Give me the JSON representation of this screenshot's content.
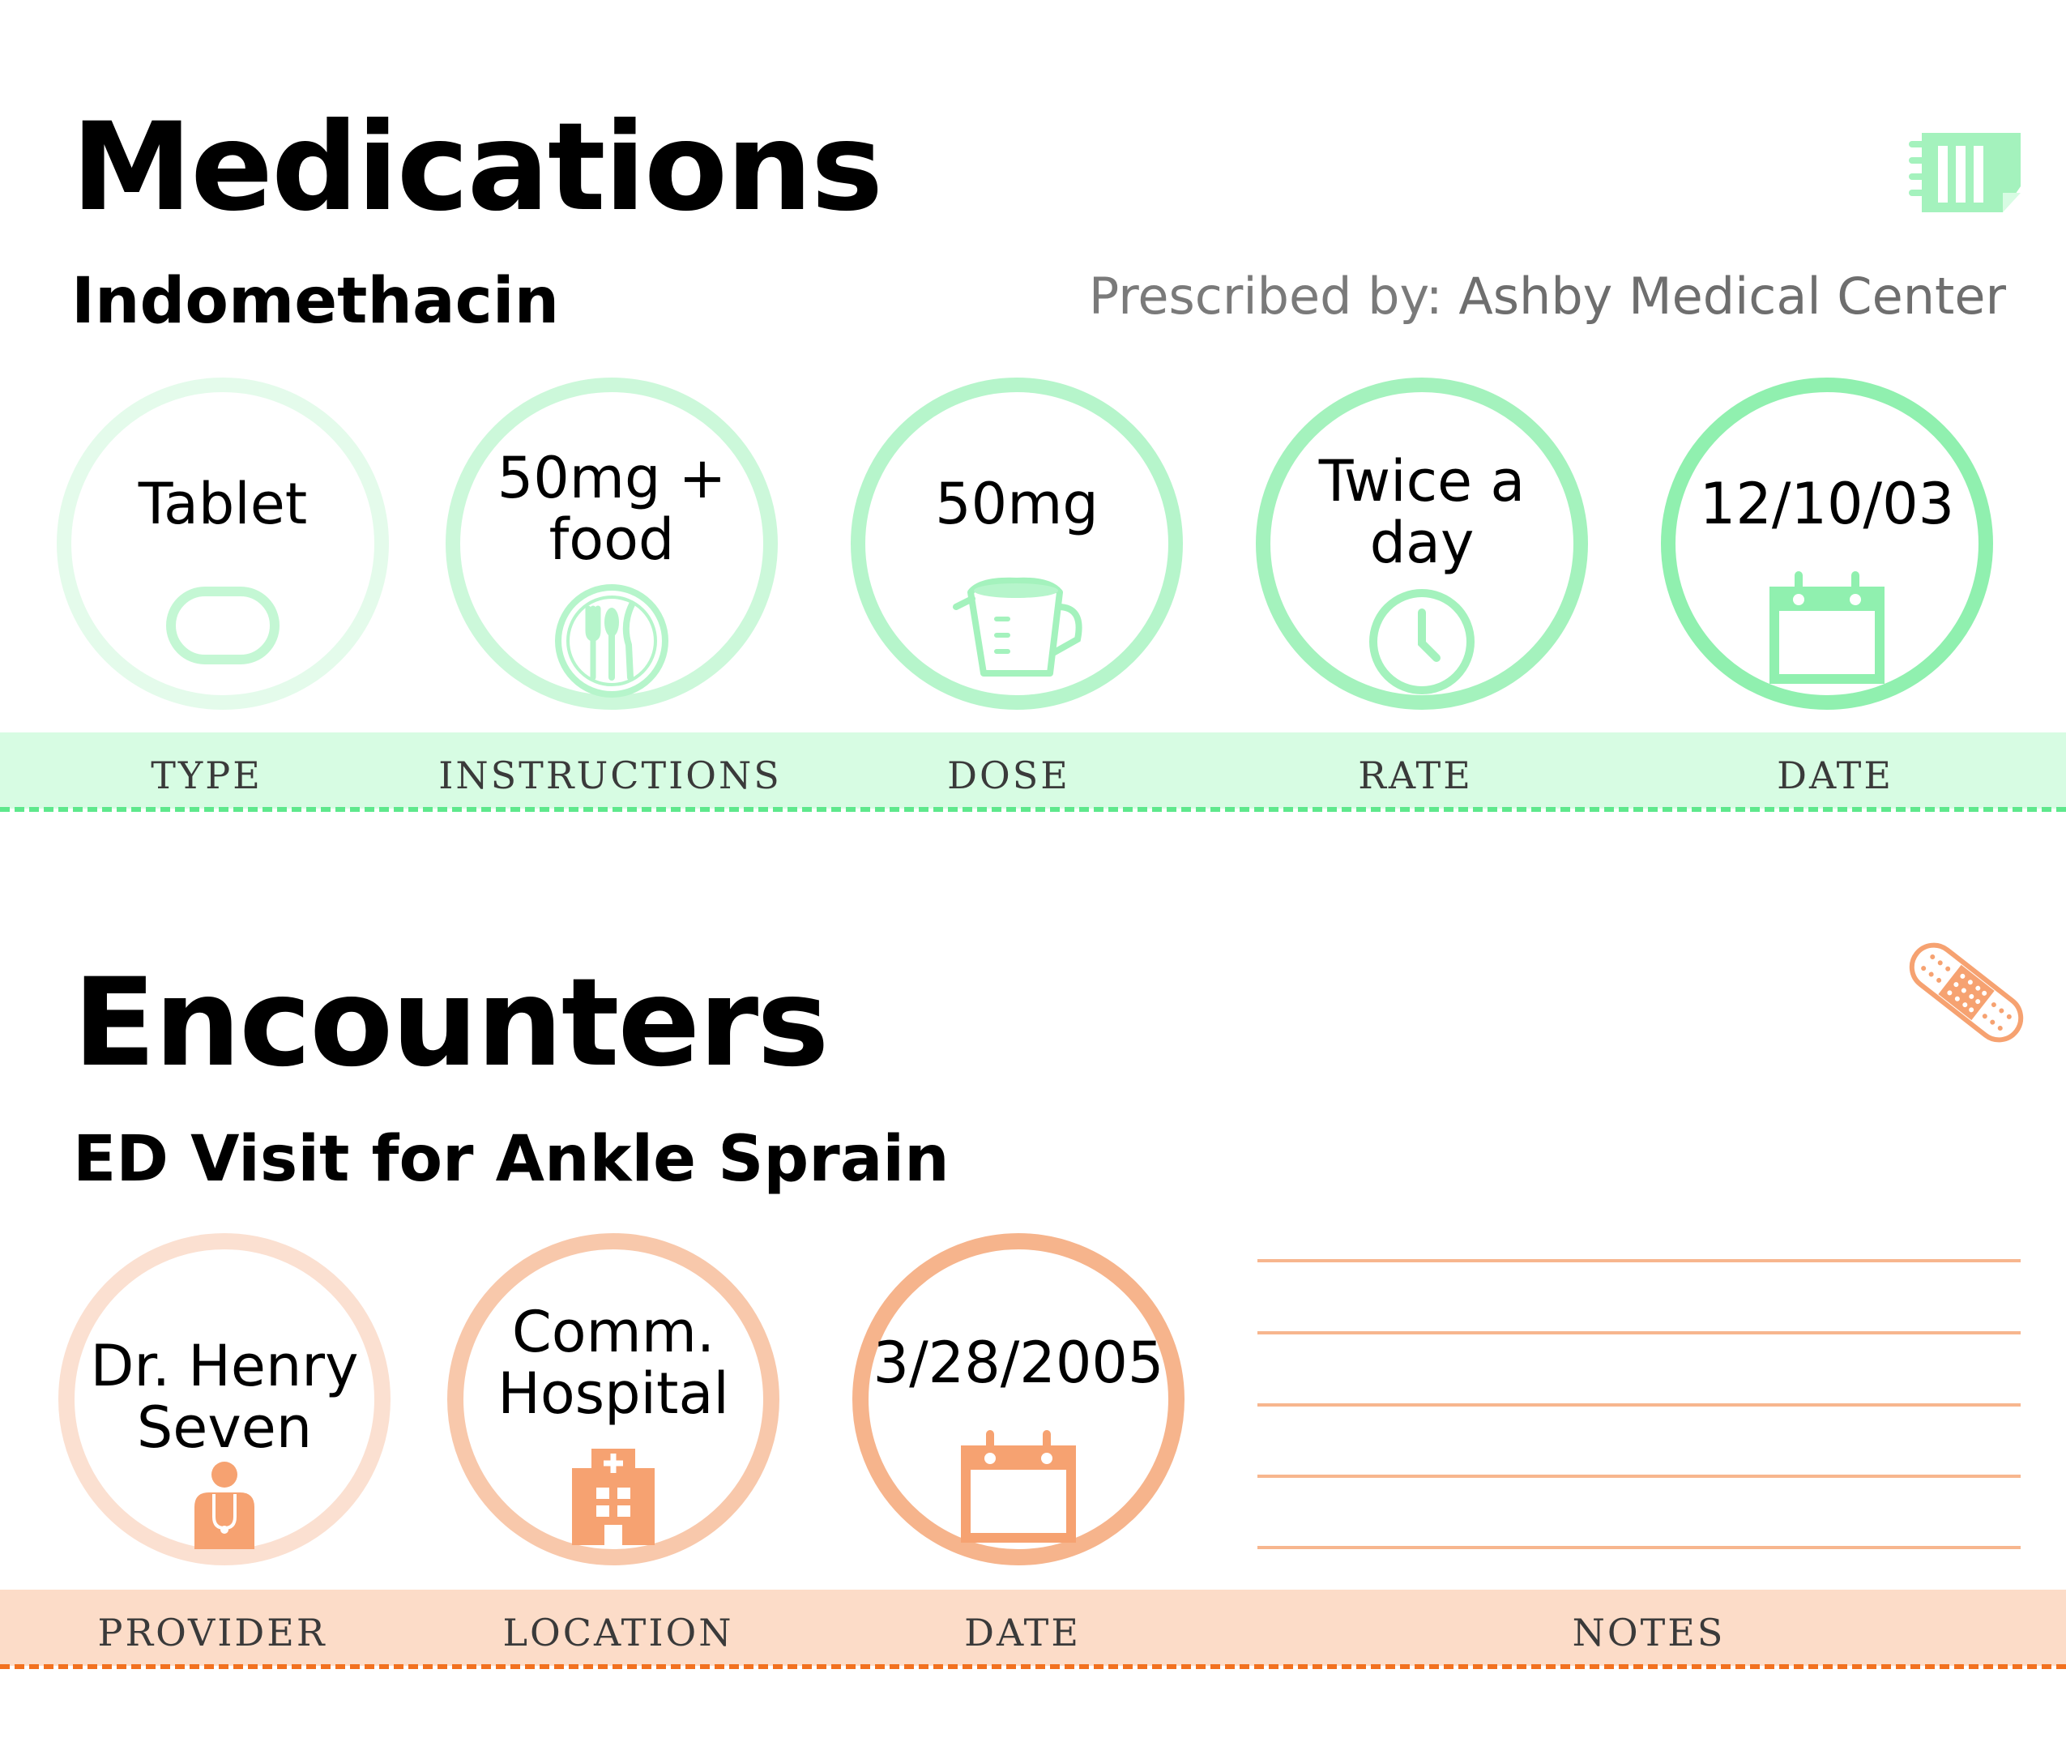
{
  "colors": {
    "green_band": "#d7fce3",
    "green_dash": "#5ee88c",
    "green_1": "#e4fbeb",
    "green_2": "#ccf8da",
    "green_3": "#b6f5cb",
    "green_4": "#a4f2bd",
    "green_5": "#90f0af",
    "orange_band": "#fcdcc8",
    "orange_dash": "#f2711f",
    "orange_1": "#fbe0d1",
    "orange_2": "#f8c8ab",
    "orange_3": "#f6b48c",
    "orange_icon": "#f6a271",
    "note_line": "#f7b68e"
  },
  "medications": {
    "title": "Medications",
    "icon": "medical-record-icon",
    "name": "Indomethacin",
    "prescribed_prefix": "Prescribed by:",
    "prescribed_by": "Ashby Medical Center",
    "items": [
      {
        "value": "Tablet",
        "label": "TYPE",
        "icon": "tablet-icon"
      },
      {
        "value": "50mg +\nfood",
        "label": "INSTRUCTIONS",
        "icon": "utensils-icon"
      },
      {
        "value": "50mg",
        "label": "DOSE",
        "icon": "measuring-cup-icon"
      },
      {
        "value": "Twice a\nday",
        "label": "RATE",
        "icon": "clock-icon"
      },
      {
        "value": "12/10/03",
        "label": "DATE",
        "icon": "calendar-icon"
      }
    ]
  },
  "encounters": {
    "title": "Encounters",
    "icon": "bandage-icon",
    "name": "ED Visit for Ankle Sprain",
    "items": [
      {
        "value": "Dr. Henry\nSeven",
        "label": "PROVIDER",
        "icon": "doctor-icon"
      },
      {
        "value": "Comm.\nHospital",
        "label": "LOCATION",
        "icon": "hospital-icon"
      },
      {
        "value": "3/28/2005",
        "label": "DATE",
        "icon": "calendar-icon"
      }
    ],
    "notes_label": "NOTES"
  }
}
